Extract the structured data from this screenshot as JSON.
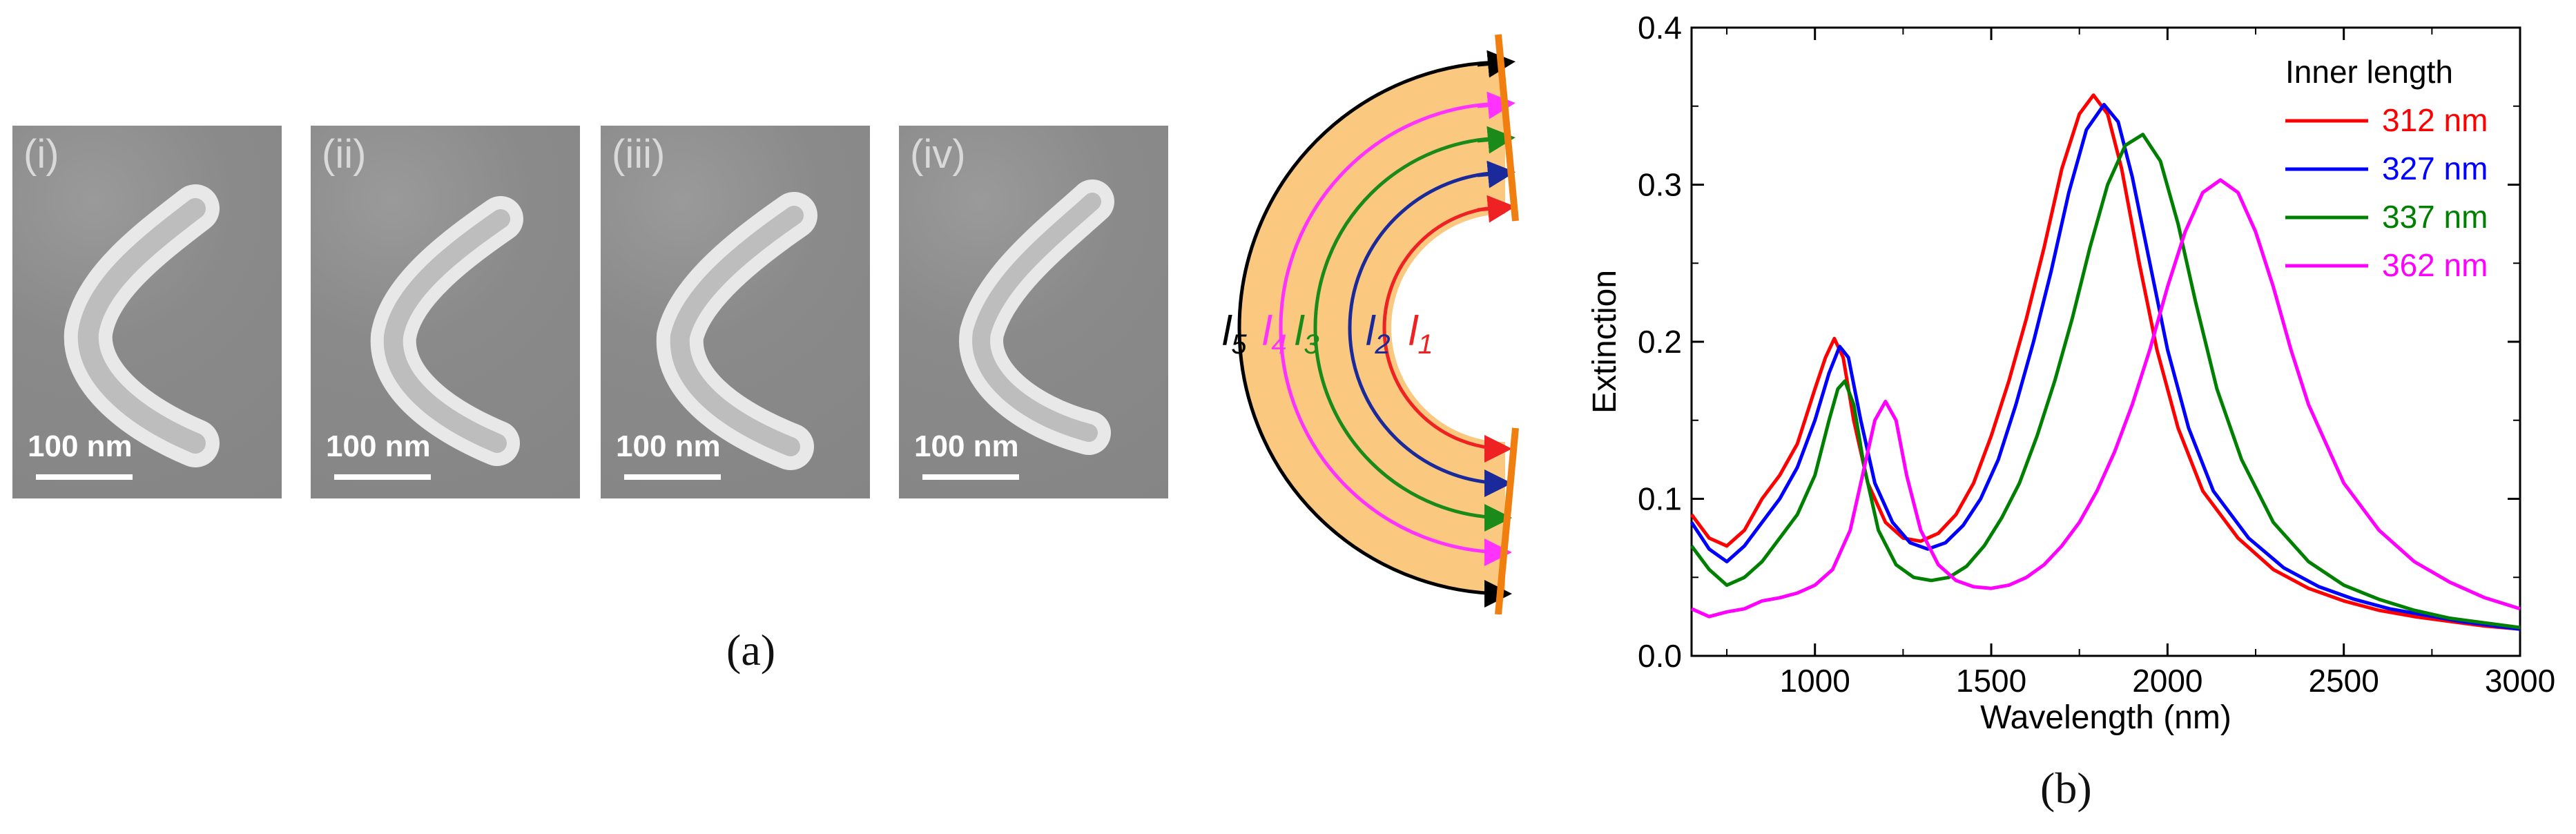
{
  "panel_a": {
    "letter": "(a)",
    "micrographs": [
      {
        "label": "(i)",
        "scale": "100 nm"
      },
      {
        "label": "(ii)",
        "scale": "100 nm"
      },
      {
        "label": "(iii)",
        "scale": "100 nm"
      },
      {
        "label": "(iv)",
        "scale": "100 nm"
      }
    ],
    "schematic_labels": [
      "l5",
      "l4",
      "l3",
      "l2",
      "l1"
    ],
    "schematic_colors": [
      "#000000",
      "#ff33ff",
      "#1a8a1a",
      "#1a2a9a",
      "#ee2222"
    ]
  },
  "panel_b": {
    "letter": "(b)"
  },
  "chart_data": {
    "type": "line",
    "xlabel": "Wavelength (nm)",
    "ylabel": "Extinction",
    "xlim": [
      650,
      3000
    ],
    "ylim": [
      0,
      0.4
    ],
    "xticks": [
      1000,
      1500,
      2000,
      2500,
      3000
    ],
    "yticks": [
      0.0,
      0.1,
      0.2,
      0.3,
      0.4
    ],
    "ytick_labels": [
      "0.0",
      "0.1",
      "0.2",
      "0.3",
      "0.4"
    ],
    "legend_title": "Inner length",
    "legend_position": "top-right",
    "grid": false,
    "series": [
      {
        "name": "312 nm",
        "color": "#ff0000",
        "x": [
          650,
          700,
          750,
          800,
          850,
          900,
          950,
          1000,
          1030,
          1055,
          1080,
          1110,
          1150,
          1200,
          1250,
          1300,
          1350,
          1400,
          1450,
          1500,
          1550,
          1600,
          1650,
          1700,
          1750,
          1790,
          1830,
          1870,
          1920,
          1970,
          2030,
          2100,
          2200,
          2300,
          2400,
          2500,
          2600,
          2700,
          2800,
          2900,
          3000
        ],
        "y": [
          0.09,
          0.075,
          0.07,
          0.08,
          0.1,
          0.115,
          0.135,
          0.17,
          0.19,
          0.202,
          0.19,
          0.15,
          0.11,
          0.085,
          0.075,
          0.073,
          0.078,
          0.09,
          0.11,
          0.14,
          0.175,
          0.215,
          0.26,
          0.31,
          0.345,
          0.357,
          0.345,
          0.31,
          0.25,
          0.195,
          0.145,
          0.105,
          0.075,
          0.055,
          0.043,
          0.035,
          0.029,
          0.025,
          0.022,
          0.019,
          0.017
        ]
      },
      {
        "name": "327 nm",
        "color": "#0000ff",
        "x": [
          650,
          700,
          750,
          800,
          850,
          900,
          950,
          1000,
          1040,
          1070,
          1095,
          1130,
          1170,
          1220,
          1270,
          1320,
          1370,
          1420,
          1470,
          1520,
          1570,
          1620,
          1670,
          1720,
          1770,
          1820,
          1860,
          1900,
          1950,
          2000,
          2060,
          2130,
          2230,
          2330,
          2430,
          2530,
          2630,
          2730,
          2830,
          2930,
          3000
        ],
        "y": [
          0.085,
          0.068,
          0.06,
          0.07,
          0.085,
          0.1,
          0.12,
          0.15,
          0.18,
          0.197,
          0.19,
          0.15,
          0.11,
          0.085,
          0.072,
          0.068,
          0.072,
          0.083,
          0.1,
          0.125,
          0.16,
          0.2,
          0.245,
          0.295,
          0.335,
          0.351,
          0.34,
          0.305,
          0.25,
          0.195,
          0.145,
          0.105,
          0.075,
          0.056,
          0.044,
          0.036,
          0.03,
          0.026,
          0.022,
          0.019,
          0.017
        ]
      },
      {
        "name": "337 nm",
        "color": "#008000",
        "x": [
          650,
          700,
          750,
          800,
          850,
          900,
          950,
          1000,
          1040,
          1065,
          1085,
          1110,
          1140,
          1180,
          1230,
          1280,
          1330,
          1380,
          1430,
          1480,
          1530,
          1580,
          1630,
          1680,
          1730,
          1780,
          1830,
          1880,
          1930,
          1980,
          2030,
          2080,
          2140,
          2210,
          2300,
          2400,
          2500,
          2600,
          2700,
          2800,
          2900,
          3000
        ],
        "y": [
          0.07,
          0.055,
          0.045,
          0.05,
          0.06,
          0.075,
          0.09,
          0.115,
          0.15,
          0.17,
          0.175,
          0.16,
          0.12,
          0.08,
          0.058,
          0.05,
          0.048,
          0.05,
          0.057,
          0.07,
          0.088,
          0.11,
          0.14,
          0.175,
          0.215,
          0.26,
          0.3,
          0.325,
          0.332,
          0.315,
          0.275,
          0.225,
          0.17,
          0.125,
          0.085,
          0.06,
          0.045,
          0.036,
          0.029,
          0.024,
          0.021,
          0.018
        ]
      },
      {
        "name": "362 nm",
        "color": "#ff00ff",
        "x": [
          650,
          700,
          750,
          800,
          850,
          900,
          950,
          1000,
          1050,
          1100,
          1140,
          1170,
          1200,
          1230,
          1260,
          1300,
          1350,
          1400,
          1450,
          1500,
          1550,
          1600,
          1650,
          1700,
          1750,
          1800,
          1850,
          1900,
          1950,
          2000,
          2050,
          2100,
          2150,
          2200,
          2250,
          2300,
          2350,
          2400,
          2500,
          2600,
          2700,
          2800,
          2900,
          3000
        ],
        "y": [
          0.03,
          0.025,
          0.028,
          0.03,
          0.035,
          0.037,
          0.04,
          0.045,
          0.055,
          0.08,
          0.12,
          0.15,
          0.162,
          0.15,
          0.115,
          0.08,
          0.058,
          0.048,
          0.044,
          0.043,
          0.045,
          0.05,
          0.058,
          0.07,
          0.085,
          0.105,
          0.13,
          0.16,
          0.195,
          0.235,
          0.27,
          0.295,
          0.303,
          0.295,
          0.27,
          0.235,
          0.195,
          0.16,
          0.11,
          0.08,
          0.06,
          0.047,
          0.037,
          0.03
        ]
      }
    ]
  }
}
